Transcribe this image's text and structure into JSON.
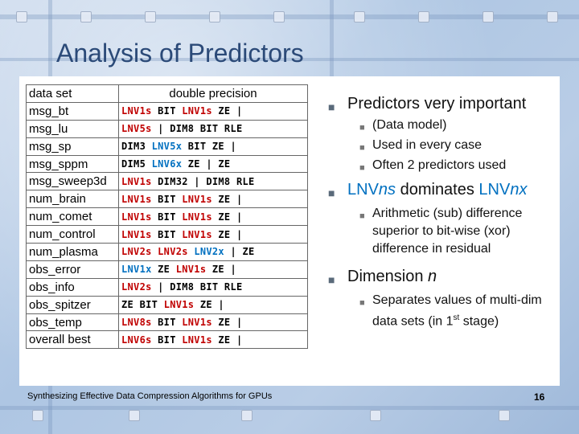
{
  "title": "Analysis of Predictors",
  "table": {
    "headers": [
      "data set",
      "double precision"
    ],
    "rows": [
      {
        "name": "msg_bt",
        "tokens": [
          [
            "LNV1s",
            "r"
          ],
          [
            " BIT ",
            "b"
          ],
          [
            "LNV1s",
            "r"
          ],
          [
            " ZE |",
            "b"
          ]
        ]
      },
      {
        "name": "msg_lu",
        "tokens": [
          [
            "LNV5s",
            "r"
          ],
          [
            " | DIM8 BIT RLE",
            "b"
          ]
        ]
      },
      {
        "name": "msg_sp",
        "tokens": [
          [
            "DIM3 ",
            "b"
          ],
          [
            "LNV5x",
            "c"
          ],
          [
            " BIT ZE |",
            "b"
          ]
        ]
      },
      {
        "name": "msg_sppm",
        "tokens": [
          [
            "DIM5 ",
            "b"
          ],
          [
            "LNV6x",
            "c"
          ],
          [
            " ZE | ZE",
            "b"
          ]
        ]
      },
      {
        "name": "msg_sweep3d",
        "tokens": [
          [
            "LNV1s",
            "r"
          ],
          [
            " DIM32 | DIM8 RLE",
            "b"
          ]
        ]
      },
      {
        "name": "num_brain",
        "tokens": [
          [
            "LNV1s",
            "r"
          ],
          [
            " BIT ",
            "b"
          ],
          [
            "LNV1s",
            "r"
          ],
          [
            " ZE |",
            "b"
          ]
        ]
      },
      {
        "name": "num_comet",
        "tokens": [
          [
            "LNV1s",
            "r"
          ],
          [
            " BIT ",
            "b"
          ],
          [
            "LNV1s",
            "r"
          ],
          [
            " ZE |",
            "b"
          ]
        ]
      },
      {
        "name": "num_control",
        "tokens": [
          [
            "LNV1s",
            "r"
          ],
          [
            " BIT ",
            "b"
          ],
          [
            "LNV1s",
            "r"
          ],
          [
            " ZE |",
            "b"
          ]
        ]
      },
      {
        "name": "num_plasma",
        "tokens": [
          [
            "LNV2s",
            "r"
          ],
          [
            " ",
            "b"
          ],
          [
            "LNV2s",
            "r"
          ],
          [
            " ",
            "b"
          ],
          [
            "LNV2x",
            "c"
          ],
          [
            " | ZE",
            "b"
          ]
        ]
      },
      {
        "name": "obs_error",
        "tokens": [
          [
            "LNV1x",
            "c"
          ],
          [
            " ZE ",
            "b"
          ],
          [
            "LNV1s",
            "r"
          ],
          [
            " ZE |",
            "b"
          ]
        ]
      },
      {
        "name": "obs_info",
        "tokens": [
          [
            "LNV2s",
            "r"
          ],
          [
            " | DIM8 BIT RLE",
            "b"
          ]
        ]
      },
      {
        "name": "obs_spitzer",
        "tokens": [
          [
            "ZE BIT ",
            "b"
          ],
          [
            "LNV1s",
            "r"
          ],
          [
            " ZE |",
            "b"
          ]
        ]
      },
      {
        "name": "obs_temp",
        "tokens": [
          [
            "LNV8s",
            "r"
          ],
          [
            " BIT ",
            "b"
          ],
          [
            "LNV1s",
            "r"
          ],
          [
            " ZE |",
            "b"
          ]
        ]
      },
      {
        "name": "overall best",
        "tokens": [
          [
            "LNV6s",
            "r"
          ],
          [
            " BIT ",
            "b"
          ],
          [
            "LNV1s",
            "r"
          ],
          [
            " ZE |",
            "b"
          ]
        ]
      }
    ]
  },
  "bullets": {
    "b1": {
      "text": "Predictors very important",
      "subs": [
        "(Data model)",
        "Used in every case",
        "Often 2 predictors used"
      ]
    },
    "b2": {
      "p1": "LNV",
      "p2": "ns",
      "p3": " dominates ",
      "p4": "LNV",
      "p5": "nx",
      "sub": "Arithmetic (sub) difference superior to bit-wise (xor) difference in residual"
    },
    "b3": {
      "p1": "Dimension ",
      "p2": "n",
      "sub_a": "Separates values of multi-dim data sets (in 1",
      "sub_sup": "st",
      "sub_b": " stage)"
    }
  },
  "footer": "Synthesizing Effective Data Compression Algorithms for GPUs",
  "page_number": "16",
  "colors": {
    "red": "#c00000",
    "cyan": "#0070c0",
    "title": "#2b4a78"
  },
  "icons": {
    "bullet": "square-bullet-icon"
  }
}
